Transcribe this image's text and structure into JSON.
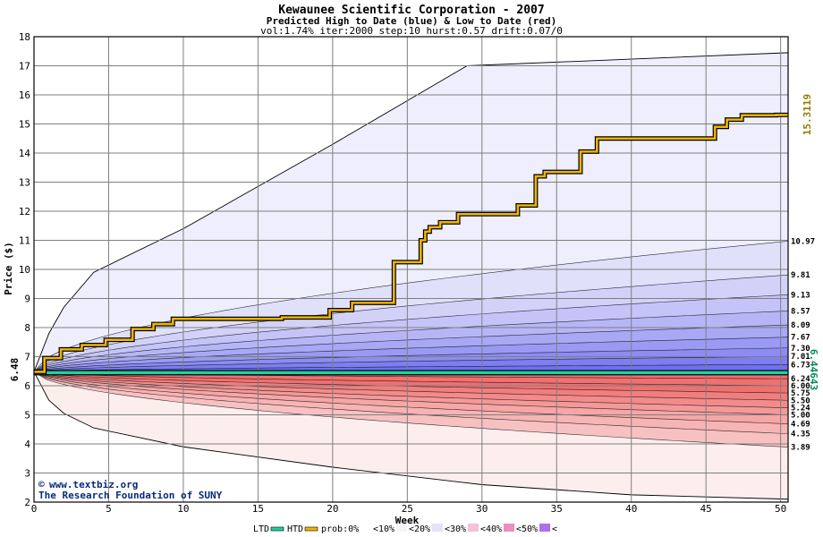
{
  "chart_data": {
    "type": "area",
    "title": "Kewaunee Scientific Corporation - 2007",
    "subtitle": "Predicted High to Date (blue) &  Low to Date (red)",
    "params": "vol:1.74% iter:2000 step:10 hurst:0.57 drift:0.07/0",
    "xlabel": "Week",
    "ylabel": "Price ($)",
    "xlim": [
      0,
      50.5
    ],
    "ylim": [
      2,
      18
    ],
    "x_ticks": [
      0,
      5,
      10,
      15,
      20,
      25,
      30,
      35,
      40,
      45,
      50
    ],
    "y_ticks": [
      2,
      3,
      4,
      5,
      6,
      7,
      8,
      9,
      10,
      11,
      12,
      13,
      14,
      15,
      16,
      17,
      18
    ],
    "grid": true,
    "start_price": 6.48,
    "start_label": "6.48",
    "ltd_value_label": "6.44643",
    "htd_value_label": "15.3119",
    "right_labels": [
      "10.97",
      "9.81",
      "9.13",
      "8.57",
      "8.09",
      "7.67",
      "7.30",
      "7.01",
      "6.73",
      "6.24",
      "6.00",
      "5.75",
      "5.50",
      "5.24",
      "5.00",
      "4.69",
      "4.35",
      "3.89"
    ],
    "upper_envelope": {
      "x": [
        0,
        1,
        2,
        4,
        10,
        20,
        25,
        29,
        50.5
      ],
      "y": [
        6.48,
        7.8,
        8.7,
        9.9,
        11.4,
        14.3,
        15.8,
        17.0,
        17.45
      ]
    },
    "lower_envelope": {
      "x": [
        0,
        1,
        2,
        4,
        10,
        20,
        30,
        40,
        50.5
      ],
      "y": [
        6.48,
        5.5,
        5.05,
        4.55,
        3.9,
        3.2,
        2.6,
        2.25,
        2.1
      ]
    },
    "high_quantiles": [
      10.97,
      9.81,
      9.13,
      8.57,
      8.09,
      7.67,
      7.3,
      7.01,
      6.73
    ],
    "low_quantiles": [
      6.24,
      6.0,
      5.75,
      5.5,
      5.24,
      5.0,
      4.69,
      4.35,
      3.89
    ],
    "htd_path": {
      "x": [
        0,
        0.7,
        0.7,
        1.8,
        1.8,
        3.2,
        3.2,
        4.8,
        4.8,
        6.6,
        6.6,
        8.0,
        8.0,
        9.3,
        9.3,
        16.6,
        16.6,
        19.8,
        19.8,
        21.3,
        21.3,
        24.1,
        24.1,
        25.9,
        25.9,
        26.2,
        26.2,
        26.5,
        26.5,
        27.2,
        27.2,
        28.4,
        28.4,
        32.4,
        32.4,
        33.6,
        33.6,
        34.2,
        34.2,
        36.6,
        36.6,
        37.7,
        37.7,
        45.6,
        45.6,
        46.4,
        46.4,
        47.4,
        47.4,
        49.7,
        49.7,
        50.5
      ],
      "y": [
        6.48,
        6.48,
        6.95,
        6.95,
        7.25,
        7.25,
        7.4,
        7.4,
        7.58,
        7.58,
        7.95,
        7.95,
        8.12,
        8.12,
        8.3,
        8.3,
        8.35,
        8.35,
        8.6,
        8.6,
        8.85,
        8.85,
        10.25,
        10.25,
        11.0,
        11.0,
        11.3,
        11.3,
        11.45,
        11.45,
        11.62,
        11.62,
        11.9,
        11.9,
        12.2,
        12.2,
        13.2,
        13.2,
        13.35,
        13.35,
        14.05,
        14.05,
        14.5,
        14.5,
        14.9,
        14.9,
        15.15,
        15.15,
        15.3,
        15.3,
        15.31,
        15.31
      ]
    },
    "ltd_path": {
      "x": [
        0,
        50.5
      ],
      "y": [
        6.45,
        6.45
      ]
    },
    "colors": {
      "htd": "#f0b400",
      "ltd": "#20d0a0",
      "upper_band_light": "#eeeefc",
      "upper_band_dark": "#7070f0",
      "lower_band_light": "#fdeeee",
      "lower_band_dark": "#f07070",
      "grid": "#7f7f7f",
      "htd_axis_label": "#9a7a00",
      "ltd_axis_label": "#008a60"
    },
    "watermark": {
      "line1": "www.textbiz.org",
      "line2": "The Research Foundation of SUNY",
      "copyright_symbol": "©"
    },
    "legend": [
      {
        "label": "LTD",
        "color": "#20d0a0"
      },
      {
        "label": "HTD",
        "color": "#f0b400"
      },
      {
        "label": "prob:0%",
        "color": "#ffffff"
      },
      {
        "label": "<10%",
        "color": "#f4f4fd"
      },
      {
        "label": "<20%",
        "color": "#e2e2fb"
      },
      {
        "label": "<30%",
        "color": "#f5c0d8"
      },
      {
        "label": "<40%",
        "color": "#e890c0"
      },
      {
        "label": "<50%",
        "color": "#b070e8"
      }
    ],
    "legend_tail": "<"
  }
}
